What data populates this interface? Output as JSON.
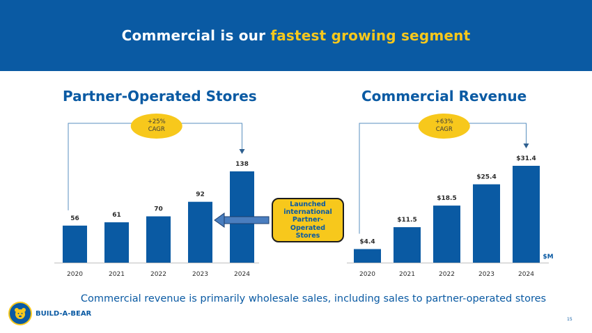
{
  "header": {
    "title_prefix": "Commercial is our",
    "title_highlight": "fastest growing segment"
  },
  "colors": {
    "brand_blue": "#0a5aa3",
    "accent_yellow": "#f7c81c"
  },
  "chart_data": [
    {
      "type": "bar",
      "title": "Partner-Operated Stores",
      "categories": [
        "2020",
        "2021",
        "2022",
        "2023",
        "2024"
      ],
      "values": [
        56,
        61,
        70,
        92,
        138
      ],
      "data_labels": [
        "56",
        "61",
        "70",
        "92",
        "138"
      ],
      "annotation": {
        "line1": "+25%",
        "line2": "CAGR"
      },
      "ylim": [
        0,
        138
      ]
    },
    {
      "type": "bar",
      "title": "Commercial Revenue",
      "categories": [
        "2020",
        "2021",
        "2022",
        "2023",
        "2024"
      ],
      "values": [
        4.4,
        11.5,
        18.5,
        25.4,
        31.4
      ],
      "data_labels": [
        "$4.4",
        "$11.5",
        "$18.5",
        "$25.4",
        "$31.4"
      ],
      "annotation": {
        "line1": "+63%",
        "line2": "CAGR"
      },
      "unit_label": "$M",
      "ylim": [
        0,
        31.4
      ]
    }
  ],
  "callout": {
    "text": "Launched international Partner-Operated Stores"
  },
  "footer": {
    "text": "Commercial revenue is primarily wholesale sales, including sales to partner-operated stores"
  },
  "logo": {
    "text": "BUILD-A-BEAR"
  },
  "page": {
    "number": "15"
  }
}
